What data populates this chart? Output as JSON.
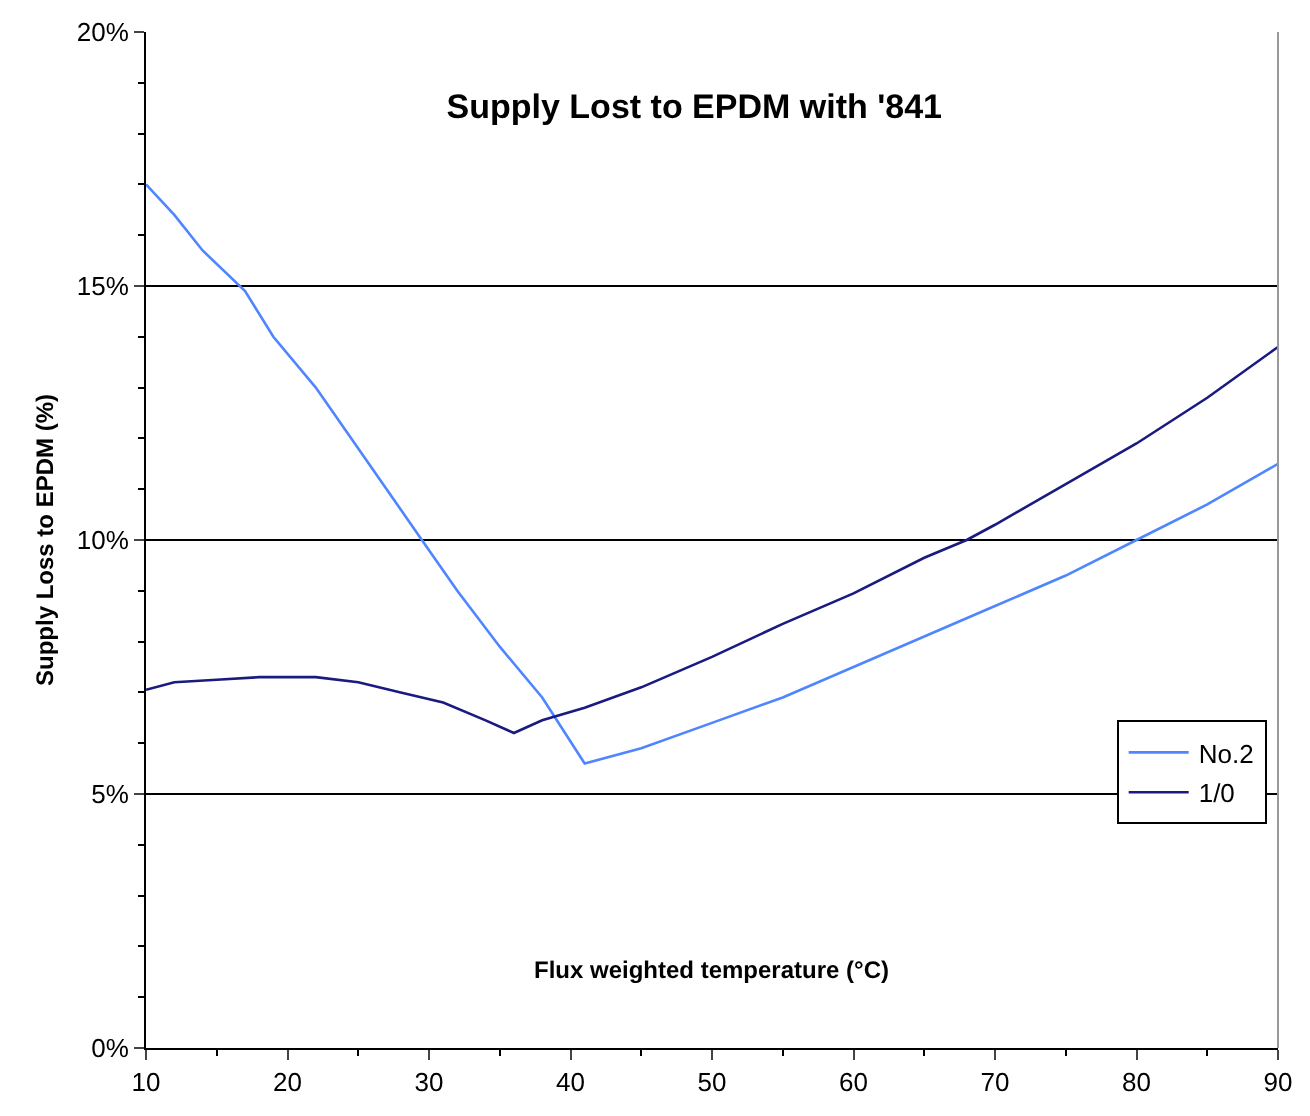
{
  "chart_data": {
    "type": "line",
    "title": "Supply Lost to EPDM with '841",
    "xlabel": "Flux weighted temperature (°C)",
    "ylabel": "Supply Loss to EPDM (%)",
    "xlim": [
      10,
      90
    ],
    "xticks": [
      10,
      20,
      30,
      40,
      50,
      60,
      70,
      80,
      90
    ],
    "ylim": [
      0,
      20
    ],
    "yticks": [
      {
        "value": 0,
        "label": "0%"
      },
      {
        "value": 5,
        "label": "5%"
      },
      {
        "value": 10,
        "label": "10%"
      },
      {
        "value": 15,
        "label": "15%"
      },
      {
        "value": 20,
        "label": "20%"
      }
    ],
    "grid": "y",
    "legend": "bottom right",
    "line_style": "solid",
    "marker": "none",
    "series": [
      {
        "name": "No.2",
        "color": "#4f86ff",
        "x": [
          10,
          12,
          14,
          17,
          19,
          22,
          25,
          28,
          30,
          32,
          35,
          38,
          41,
          45,
          50,
          55,
          60,
          65,
          70,
          75,
          80,
          85,
          90
        ],
        "values": [
          17.0,
          16.4,
          15.7,
          14.9,
          14.0,
          13.0,
          11.8,
          10.6,
          9.8,
          9.0,
          7.9,
          6.9,
          5.6,
          5.9,
          6.4,
          6.9,
          7.5,
          8.1,
          8.7,
          9.3,
          10.0,
          10.7,
          11.5
        ]
      },
      {
        "name": "1/0",
        "color": "#1a1a80",
        "x": [
          10,
          12,
          15,
          18,
          22,
          25,
          28,
          31,
          34,
          36,
          38,
          41,
          45,
          50,
          55,
          60,
          65,
          68,
          70,
          75,
          80,
          85,
          90
        ],
        "values": [
          7.05,
          7.2,
          7.25,
          7.3,
          7.3,
          7.2,
          7.0,
          6.8,
          6.45,
          6.2,
          6.45,
          6.7,
          7.1,
          7.7,
          8.35,
          8.95,
          9.65,
          10.0,
          10.3,
          11.1,
          11.9,
          12.8,
          13.8
        ]
      }
    ]
  }
}
